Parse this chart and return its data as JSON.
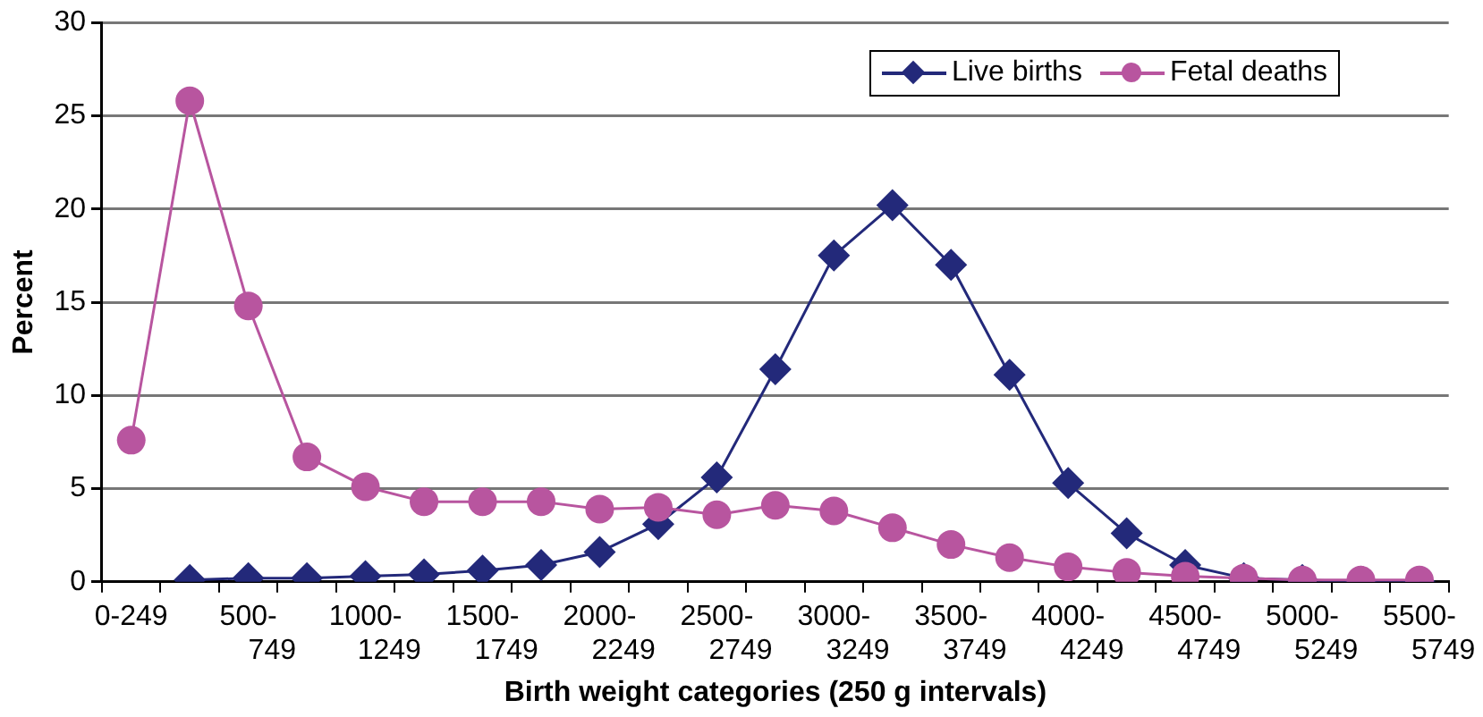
{
  "chart_data": {
    "type": "line",
    "xlabel": "Birth weight categories (250 g intervals)",
    "ylabel": "Percent",
    "categories": [
      "0-249",
      null,
      "500-749",
      null,
      "1000-1249",
      null,
      "1500-1749",
      null,
      "2000-2249",
      null,
      "2500-2749",
      null,
      "3000-3249",
      null,
      "3500-3749",
      null,
      "4000-4249",
      null,
      "4500-4749",
      null,
      "5000-5249",
      null,
      "5500-5749"
    ],
    "series": [
      {
        "name": "Live births",
        "color": "#23297a",
        "marker": "diamond",
        "values": [
          null,
          0.1,
          0.2,
          0.2,
          0.3,
          0.4,
          0.6,
          0.9,
          1.6,
          3.1,
          5.6,
          11.4,
          17.5,
          20.2,
          17.0,
          11.1,
          5.3,
          2.6,
          0.9,
          0.2,
          0.1,
          0.0,
          0.0
        ]
      },
      {
        "name": "Fetal deaths",
        "color": "#b8559f",
        "marker": "circle",
        "values": [
          7.6,
          25.8,
          14.8,
          6.7,
          5.1,
          4.3,
          4.3,
          4.3,
          3.9,
          4.0,
          3.6,
          4.1,
          3.8,
          2.9,
          2.0,
          1.3,
          0.8,
          0.5,
          0.3,
          0.2,
          0.1,
          0.1,
          0.1
        ]
      }
    ],
    "ylim": [
      0,
      30
    ],
    "yticks": [
      0,
      5,
      10,
      15,
      20,
      25,
      30
    ],
    "grid": "y",
    "legend": "top right",
    "line_style": "solid"
  }
}
